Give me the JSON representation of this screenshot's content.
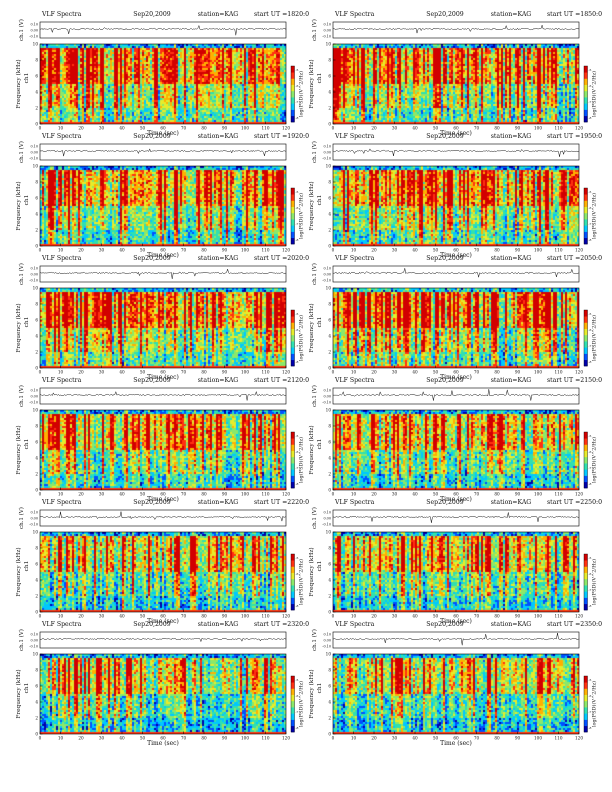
{
  "page": {
    "common": {
      "title_label": "VLF Spectra",
      "date": "Sep20,2009",
      "station_label": "station=KAG",
      "start_label": "start UT =",
      "ch_axis_label": "ch.1 (V)",
      "freq_axis_label": "Frequency (kHz)",
      "ch_label": "ch1",
      "colorbar_label": "log(PSD)(V^2/Hz)",
      "x_label": "Time (sec)",
      "x_ticks": [
        "0",
        "10",
        "20",
        "30",
        "40",
        "50",
        "60",
        "70",
        "80",
        "90",
        "100",
        "110",
        "120"
      ],
      "y_ticks": [
        "0",
        "2",
        "4",
        "6",
        "8",
        "10"
      ],
      "ch_ticks": [
        "0.10",
        "0.00",
        "-0.10"
      ],
      "colorbar_ticks": [
        "-5",
        "-6",
        "-7",
        "-8"
      ]
    }
  },
  "colors": {
    "colormap": [
      "#0000aa",
      "#0050ff",
      "#00c8ff",
      "#30e0b0",
      "#8be86a",
      "#e6ec2b",
      "#ffb000",
      "#ff3010",
      "#d20000"
    ]
  },
  "chart_data": [
    {
      "type": "heatmap",
      "title": "VLF Spectra",
      "date": "Sep20,2009",
      "station": "KAG",
      "start_ut": "1820:0",
      "xlabel": "Time (sec)",
      "ylabel": "Frequency (kHz)",
      "xlim": [
        0,
        120
      ],
      "ylim": [
        0,
        10
      ],
      "colorbar": "log(PSD)(V^2/Hz)",
      "intensity": 0.85
    },
    {
      "type": "heatmap",
      "title": "VLF Spectra",
      "date": "Sep20,2009",
      "station": "KAG",
      "start_ut": "1850:0",
      "xlabel": "Time (sec)",
      "ylabel": "Frequency (kHz)",
      "xlim": [
        0,
        120
      ],
      "ylim": [
        0,
        10
      ],
      "colorbar": "log(PSD)(V^2/Hz)",
      "intensity": 0.85
    },
    {
      "type": "heatmap",
      "title": "VLF Spectra",
      "date": "Sep20,2009",
      "station": "KAG",
      "start_ut": "1920:0",
      "xlabel": "Time (sec)",
      "ylabel": "Frequency (kHz)",
      "xlim": [
        0,
        120
      ],
      "ylim": [
        0,
        10
      ],
      "colorbar": "log(PSD)(V^2/Hz)",
      "intensity": 0.85
    },
    {
      "type": "heatmap",
      "title": "VLF Spectra",
      "date": "Sep20,2009",
      "station": "KAG",
      "start_ut": "1950:0",
      "xlabel": "Time (sec)",
      "ylabel": "Frequency (kHz)",
      "xlim": [
        0,
        120
      ],
      "ylim": [
        0,
        10
      ],
      "colorbar": "log(PSD)(V^2/Hz)",
      "intensity": 0.85
    },
    {
      "type": "heatmap",
      "title": "VLF Spectra",
      "date": "Sep20,2009",
      "station": "KAG",
      "start_ut": "2020:0",
      "xlabel": "Time (sec)",
      "ylabel": "Frequency (kHz)",
      "xlim": [
        0,
        120
      ],
      "ylim": [
        0,
        10
      ],
      "colorbar": "log(PSD)(V^2/Hz)",
      "intensity": 0.7
    },
    {
      "type": "heatmap",
      "title": "VLF Spectra",
      "date": "Sep20,2009",
      "station": "KAG",
      "start_ut": "2050:0",
      "xlabel": "Time (sec)",
      "ylabel": "Frequency (kHz)",
      "xlim": [
        0,
        120
      ],
      "ylim": [
        0,
        10
      ],
      "colorbar": "log(PSD)(V^2/Hz)",
      "intensity": 0.7
    },
    {
      "type": "heatmap",
      "title": "VLF Spectra",
      "date": "Sep20,2009",
      "station": "KAG",
      "start_ut": "2120:0",
      "xlabel": "Time (sec)",
      "ylabel": "Frequency (kHz)",
      "xlim": [
        0,
        120
      ],
      "ylim": [
        0,
        10
      ],
      "colorbar": "log(PSD)(V^2/Hz)",
      "intensity": 0.55
    },
    {
      "type": "heatmap",
      "title": "VLF Spectra",
      "date": "Sep20,2009",
      "station": "KAG",
      "start_ut": "2150:0",
      "xlabel": "Time (sec)",
      "ylabel": "Frequency (kHz)",
      "xlim": [
        0,
        120
      ],
      "ylim": [
        0,
        10
      ],
      "colorbar": "log(PSD)(V^2/Hz)",
      "intensity": 0.55
    },
    {
      "type": "heatmap",
      "title": "VLF Spectra",
      "date": "Sep20,2009",
      "station": "KAG",
      "start_ut": "2220:0",
      "xlabel": "Time (sec)",
      "ylabel": "Frequency (kHz)",
      "xlim": [
        0,
        120
      ],
      "ylim": [
        0,
        10
      ],
      "colorbar": "log(PSD)(V^2/Hz)",
      "intensity": 0.45
    },
    {
      "type": "heatmap",
      "title": "VLF Spectra",
      "date": "Sep20,2009",
      "station": "KAG",
      "start_ut": "2250:0",
      "xlabel": "Time (sec)",
      "ylabel": "Frequency (kHz)",
      "xlim": [
        0,
        120
      ],
      "ylim": [
        0,
        10
      ],
      "colorbar": "log(PSD)(V^2/Hz)",
      "intensity": 0.45
    },
    {
      "type": "heatmap",
      "title": "VLF Spectra",
      "date": "Sep20,2009",
      "station": "KAG",
      "start_ut": "2320:0",
      "xlabel": "Time (sec)",
      "ylabel": "Frequency (kHz)",
      "xlim": [
        0,
        120
      ],
      "ylim": [
        0,
        10
      ],
      "colorbar": "log(PSD)(V^2/Hz)",
      "intensity": 0.4
    },
    {
      "type": "heatmap",
      "title": "VLF Spectra",
      "date": "Sep20,2009",
      "station": "KAG",
      "start_ut": "2350:0",
      "xlabel": "Time (sec)",
      "ylabel": "Frequency (kHz)",
      "xlim": [
        0,
        120
      ],
      "ylim": [
        0,
        10
      ],
      "colorbar": "log(PSD)(V^2/Hz)",
      "intensity": 0.4
    }
  ]
}
